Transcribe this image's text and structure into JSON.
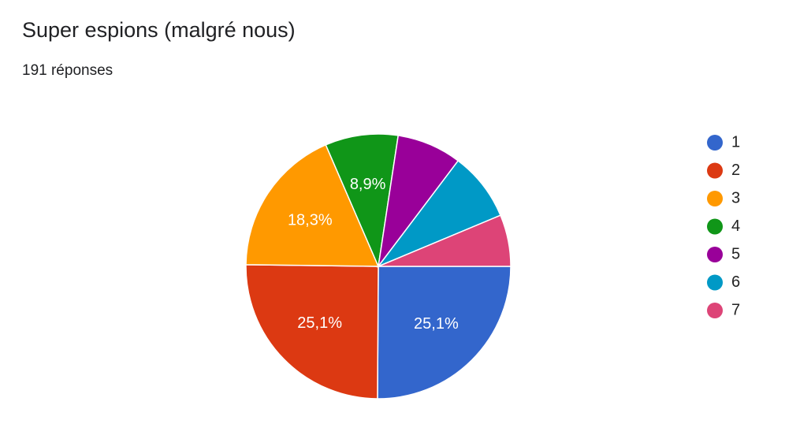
{
  "chart_data": {
    "type": "pie",
    "title": "Super espions (malgré nous)",
    "subtitle": "191 réponses",
    "categories": [
      "1",
      "2",
      "3",
      "4",
      "5",
      "6",
      "7"
    ],
    "values": [
      25.1,
      25.1,
      18.3,
      8.9,
      7.9,
      8.4,
      6.3
    ],
    "value_labels": [
      "25,1%",
      "25,1%",
      "18,3%",
      "8,9%",
      null,
      null,
      null
    ],
    "colors": [
      "#3366cc",
      "#dc3912",
      "#ff9900",
      "#109618",
      "#990099",
      "#0099c6",
      "#dd4477"
    ],
    "legend": "right"
  }
}
